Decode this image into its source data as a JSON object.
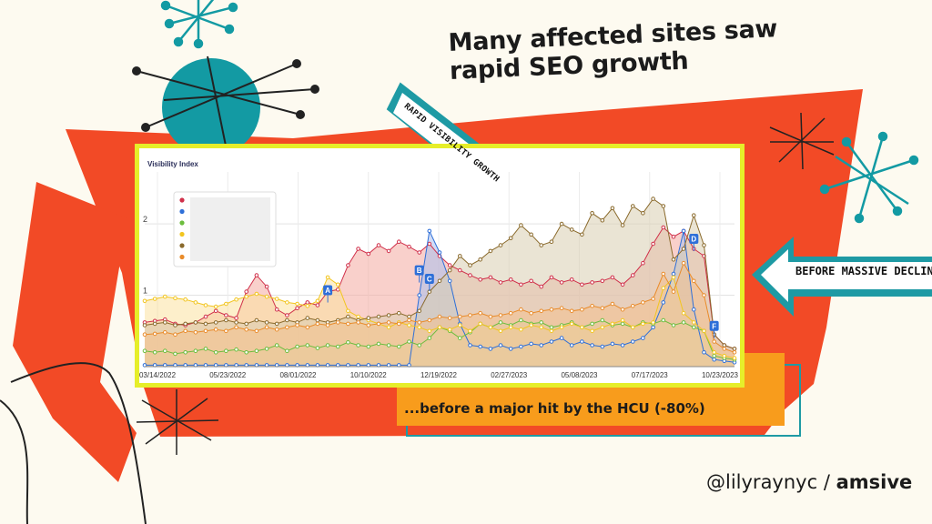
{
  "slide": {
    "headline": "Many affected sites saw rapid SEO growth",
    "arrow_growth_label": "RAPID VISIBILITY GROWTH",
    "arrow_decline_label": "BEFORE MASSIVE DECLINE",
    "caption": "...before a major hit by the HCU (-80%)",
    "credit_handle": "@lilyraynyc",
    "credit_sep": " / ",
    "credit_brand": "amsive",
    "colors": {
      "red_shape": "#f24a26",
      "teal": "#139aa3",
      "orange": "#f89c1c",
      "frame": "#e6ee2a"
    }
  },
  "chart_data": {
    "type": "area",
    "title": "Visibility Index",
    "ylim": [
      0,
      2.6
    ],
    "yticks": [
      {
        "value": 1,
        "label": "1"
      },
      {
        "value": 2,
        "label": "2"
      }
    ],
    "xticks": [
      "03/14/2022",
      "05/23/2022",
      "08/01/2022",
      "10/10/2022",
      "12/19/2022",
      "02/27/2023",
      "05/08/2023",
      "07/17/2023",
      "10/23/2023"
    ],
    "grid": true,
    "legend": "top-left",
    "series": [
      {
        "color": "#d0304a",
        "fill": "#f4a9a0",
        "values": [
          0.62,
          0.64,
          0.66,
          0.6,
          0.58,
          0.62,
          0.7,
          0.78,
          0.72,
          0.68,
          1.05,
          1.28,
          1.12,
          0.8,
          0.72,
          0.82,
          0.9,
          0.86,
          1.05,
          1.08,
          1.42,
          1.65,
          1.58,
          1.7,
          1.62,
          1.75,
          1.68,
          1.6,
          1.72,
          1.55,
          1.42,
          1.35,
          1.28,
          1.22,
          1.25,
          1.18,
          1.22,
          1.15,
          1.2,
          1.12,
          1.25,
          1.18,
          1.22,
          1.15,
          1.18,
          1.2,
          1.25,
          1.15,
          1.28,
          1.45,
          1.72,
          1.95,
          1.82,
          1.9,
          1.65,
          1.55,
          0.45,
          0.3,
          0.25
        ]
      },
      {
        "color": "#2e6fd8",
        "fill": "#a9c0ef",
        "values": [
          0.02,
          0.02,
          0.02,
          0.02,
          0.02,
          0.02,
          0.02,
          0.02,
          0.02,
          0.02,
          0.02,
          0.02,
          0.02,
          0.02,
          0.02,
          0.02,
          0.02,
          0.02,
          0.02,
          0.02,
          0.02,
          0.02,
          0.02,
          0.02,
          0.02,
          0.02,
          0.02,
          1.0,
          1.9,
          1.6,
          1.2,
          0.6,
          0.3,
          0.28,
          0.25,
          0.3,
          0.25,
          0.28,
          0.32,
          0.3,
          0.35,
          0.4,
          0.3,
          0.35,
          0.3,
          0.28,
          0.32,
          0.3,
          0.35,
          0.4,
          0.55,
          0.9,
          1.3,
          1.9,
          0.8,
          0.2,
          0.1,
          0.08,
          0.06
        ]
      },
      {
        "color": "#6cbd3e",
        "fill": "#c6e3a6",
        "values": [
          0.22,
          0.2,
          0.22,
          0.18,
          0.2,
          0.22,
          0.25,
          0.2,
          0.22,
          0.24,
          0.2,
          0.22,
          0.25,
          0.3,
          0.22,
          0.28,
          0.3,
          0.26,
          0.3,
          0.28,
          0.34,
          0.3,
          0.28,
          0.32,
          0.3,
          0.28,
          0.35,
          0.3,
          0.4,
          0.55,
          0.5,
          0.4,
          0.48,
          0.6,
          0.55,
          0.62,
          0.58,
          0.65,
          0.6,
          0.62,
          0.55,
          0.58,
          0.62,
          0.55,
          0.6,
          0.65,
          0.58,
          0.6,
          0.55,
          0.62,
          0.6,
          0.65,
          0.58,
          0.62,
          0.55,
          0.5,
          0.15,
          0.12,
          0.1
        ]
      },
      {
        "color": "#f2c51f",
        "fill": "#fbe1a0",
        "values": [
          0.92,
          0.95,
          0.98,
          0.96,
          0.94,
          0.9,
          0.86,
          0.84,
          0.88,
          0.94,
          0.98,
          1.02,
          0.98,
          0.95,
          0.9,
          0.88,
          0.85,
          0.92,
          1.25,
          1.15,
          0.78,
          0.7,
          0.65,
          0.6,
          0.55,
          0.62,
          0.58,
          0.55,
          0.5,
          0.55,
          0.52,
          0.58,
          0.5,
          0.6,
          0.55,
          0.5,
          0.55,
          0.52,
          0.58,
          0.55,
          0.5,
          0.55,
          0.6,
          0.55,
          0.5,
          0.55,
          0.6,
          0.65,
          0.55,
          0.6,
          0.62,
          1.1,
          1.25,
          0.75,
          0.62,
          0.5,
          0.2,
          0.15,
          0.12
        ]
      },
      {
        "color": "#8a6a2c",
        "fill": "#d8cdb0",
        "values": [
          0.58,
          0.6,
          0.62,
          0.58,
          0.6,
          0.62,
          0.6,
          0.62,
          0.65,
          0.62,
          0.6,
          0.65,
          0.62,
          0.6,
          0.65,
          0.62,
          0.68,
          0.65,
          0.62,
          0.65,
          0.7,
          0.65,
          0.68,
          0.7,
          0.72,
          0.75,
          0.7,
          0.78,
          1.05,
          1.2,
          1.35,
          1.55,
          1.42,
          1.5,
          1.62,
          1.7,
          1.8,
          1.98,
          1.85,
          1.7,
          1.75,
          2.0,
          1.92,
          1.85,
          2.15,
          2.05,
          2.22,
          1.98,
          2.25,
          2.15,
          2.35,
          2.25,
          1.5,
          1.65,
          2.12,
          1.7,
          0.45,
          0.3,
          0.25
        ]
      },
      {
        "color": "#e98b2a",
        "fill": "#f4c18e",
        "values": [
          0.45,
          0.46,
          0.48,
          0.45,
          0.5,
          0.48,
          0.5,
          0.52,
          0.5,
          0.55,
          0.52,
          0.5,
          0.55,
          0.52,
          0.55,
          0.58,
          0.55,
          0.6,
          0.58,
          0.62,
          0.6,
          0.62,
          0.58,
          0.6,
          0.62,
          0.6,
          0.65,
          0.62,
          0.65,
          0.7,
          0.68,
          0.7,
          0.72,
          0.75,
          0.7,
          0.72,
          0.75,
          0.8,
          0.75,
          0.78,
          0.8,
          0.82,
          0.78,
          0.8,
          0.85,
          0.82,
          0.88,
          0.8,
          0.85,
          0.9,
          0.95,
          1.3,
          1.05,
          1.45,
          1.2,
          1.0,
          0.35,
          0.25,
          0.2
        ]
      }
    ],
    "annotations": [
      {
        "label": "A",
        "x_index": 18,
        "y": 1.0
      },
      {
        "label": "B",
        "x_index": 27,
        "y": 1.28
      },
      {
        "label": "C",
        "x_index": 28,
        "y": 1.16
      },
      {
        "label": "D",
        "x_index": 54,
        "y": 1.72
      },
      {
        "label": "F",
        "x_index": 56,
        "y": 0.5
      }
    ]
  }
}
